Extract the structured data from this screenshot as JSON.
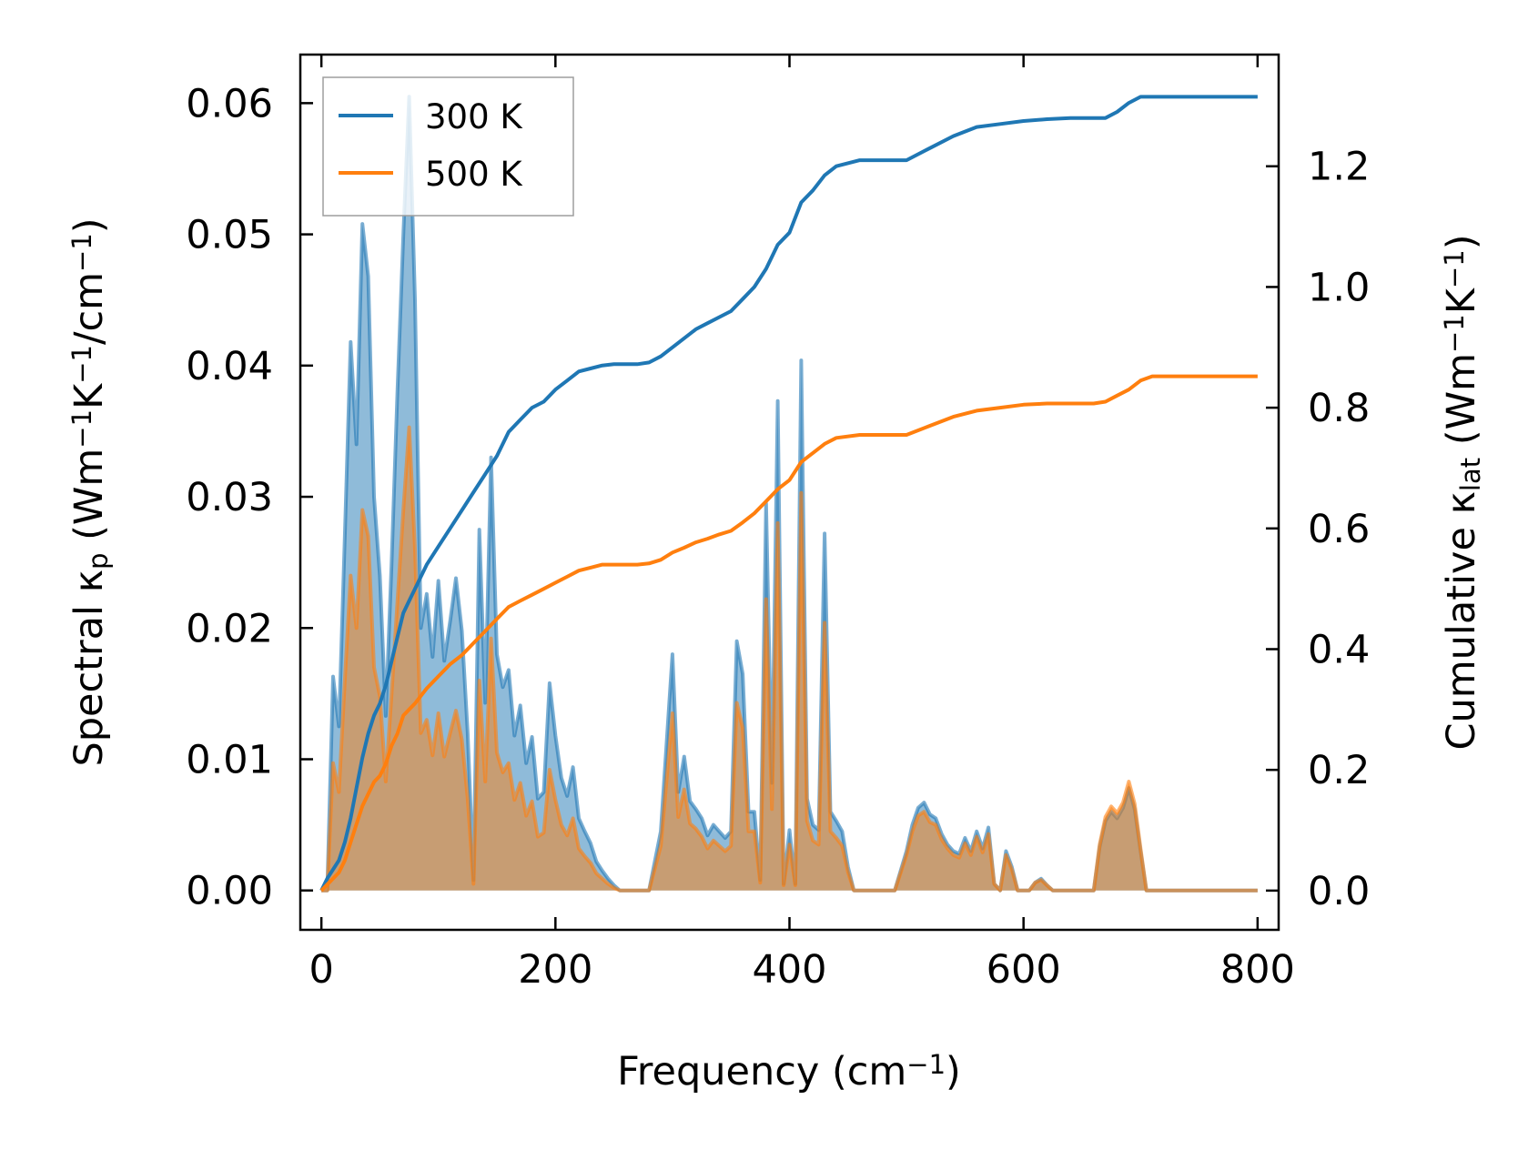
{
  "chart_data": {
    "type": "line",
    "title": "",
    "x_axis": {
      "label": "Frequency (cm",
      "label_sup": "−1",
      "label_end": ")",
      "lim": [
        -18,
        818
      ],
      "ticks": [
        0,
        200,
        400,
        600,
        800
      ],
      "tick_labels": [
        "0",
        "200",
        "400",
        "600",
        "800"
      ]
    },
    "y_axis_left": {
      "label_parts": [
        "Spectral κ",
        "p",
        " (Wm",
        "−1",
        "K",
        "−1",
        "/cm",
        "−1",
        ")"
      ],
      "label_styles": [
        "n",
        "sub",
        "n",
        "sup",
        "n",
        "sup",
        "n",
        "sup",
        "n"
      ],
      "lim": [
        -0.003,
        0.0637
      ],
      "ticks": [
        0,
        0.01,
        0.02,
        0.03,
        0.04,
        0.05,
        0.06
      ],
      "tick_labels": [
        "0.00",
        "0.01",
        "0.02",
        "0.03",
        "0.04",
        "0.05",
        "0.06"
      ]
    },
    "y_axis_right": {
      "label_parts": [
        "Cumulative κ",
        "lat",
        " (Wm",
        "−1",
        "K",
        "−1",
        ")"
      ],
      "label_styles": [
        "n",
        "sub",
        "n",
        "sup",
        "n",
        "sup",
        "n"
      ],
      "lim": [
        -0.065,
        1.385
      ],
      "ticks": [
        0,
        0.2,
        0.4,
        0.6,
        0.8,
        1.0,
        1.2
      ],
      "tick_labels": [
        "0.0",
        "0.2",
        "0.4",
        "0.6",
        "0.8",
        "1.0",
        "1.2"
      ]
    },
    "legend": {
      "placement": "upper-left",
      "entries": [
        "300 K",
        "500 K"
      ]
    },
    "series": [
      {
        "name": "300 K",
        "color": "#1f77b4",
        "spectral": {
          "x": [
            0,
            5,
            10,
            15,
            20,
            25,
            30,
            35,
            40,
            45,
            50,
            55,
            60,
            65,
            70,
            75,
            80,
            85,
            90,
            95,
            100,
            105,
            110,
            115,
            120,
            125,
            130,
            135,
            140,
            145,
            150,
            155,
            160,
            165,
            170,
            175,
            180,
            185,
            190,
            195,
            200,
            205,
            210,
            215,
            220,
            225,
            230,
            235,
            240,
            245,
            250,
            255,
            260,
            270,
            280,
            290,
            300,
            305,
            310,
            315,
            320,
            325,
            330,
            335,
            340,
            345,
            350,
            355,
            360,
            365,
            370,
            375,
            380,
            385,
            390,
            395,
            400,
            405,
            410,
            415,
            420,
            425,
            430,
            435,
            440,
            445,
            450,
            455,
            460,
            470,
            480,
            490,
            500,
            505,
            510,
            515,
            520,
            525,
            530,
            535,
            540,
            545,
            550,
            555,
            560,
            565,
            570,
            575,
            580,
            585,
            590,
            595,
            600,
            605,
            610,
            615,
            620,
            625,
            630,
            640,
            650,
            660,
            665,
            670,
            675,
            680,
            685,
            690,
            695,
            700,
            705,
            710,
            720,
            740,
            760,
            780,
            800
          ],
          "values": [
            0.0,
            0.0,
            0.0163,
            0.0125,
            0.027,
            0.0418,
            0.034,
            0.0508,
            0.0468,
            0.03,
            0.024,
            0.0133,
            0.025,
            0.038,
            0.05,
            0.0605,
            0.045,
            0.02,
            0.0226,
            0.0178,
            0.0236,
            0.0175,
            0.0205,
            0.0238,
            0.0198,
            0.012,
            0.0008,
            0.0275,
            0.0143,
            0.033,
            0.018,
            0.0155,
            0.0168,
            0.0118,
            0.0141,
            0.0097,
            0.0117,
            0.007,
            0.0075,
            0.0158,
            0.0118,
            0.0086,
            0.0072,
            0.0094,
            0.0055,
            0.0045,
            0.0036,
            0.0022,
            0.0015,
            0.0009,
            0.0004,
            0.0,
            0.0,
            0.0,
            0.0,
            0.0045,
            0.018,
            0.0075,
            0.0102,
            0.0068,
            0.0062,
            0.0055,
            0.0042,
            0.005,
            0.0045,
            0.004,
            0.0045,
            0.019,
            0.0165,
            0.006,
            0.006,
            0.0008,
            0.0295,
            0.0082,
            0.0373,
            0.0005,
            0.0046,
            0.0005,
            0.0404,
            0.007,
            0.005,
            0.0046,
            0.0272,
            0.006,
            0.0053,
            0.0045,
            0.0018,
            0.0,
            0.0,
            0.0,
            0.0,
            0.0,
            0.003,
            0.005,
            0.0063,
            0.0067,
            0.0058,
            0.0055,
            0.0043,
            0.0035,
            0.003,
            0.0028,
            0.004,
            0.003,
            0.0045,
            0.0032,
            0.0048,
            0.0005,
            0.0,
            0.003,
            0.0018,
            0.0,
            0.0,
            0.0,
            0.0006,
            0.0009,
            0.0004,
            0.0,
            0.0,
            0.0,
            0.0,
            0.0,
            0.0033,
            0.0053,
            0.006,
            0.0055,
            0.0063,
            0.0078,
            0.0062,
            0.003,
            0.0,
            0.0,
            0.0,
            0.0,
            0.0,
            0.0,
            0.0
          ]
        },
        "cumulative": {
          "x": [
            0,
            5,
            15,
            20,
            25,
            30,
            35,
            40,
            45,
            50,
            55,
            60,
            65,
            70,
            75,
            80,
            90,
            100,
            110,
            120,
            130,
            140,
            150,
            160,
            170,
            180,
            190,
            200,
            210,
            220,
            230,
            240,
            250,
            260,
            270,
            280,
            290,
            300,
            310,
            320,
            330,
            340,
            350,
            360,
            370,
            380,
            390,
            400,
            410,
            420,
            430,
            440,
            460,
            480,
            500,
            520,
            540,
            560,
            580,
            600,
            620,
            640,
            660,
            670,
            680,
            690,
            700,
            710,
            720,
            760,
            800
          ],
          "values": [
            0.0,
            0.02,
            0.05,
            0.08,
            0.12,
            0.17,
            0.22,
            0.26,
            0.29,
            0.31,
            0.34,
            0.38,
            0.42,
            0.46,
            0.48,
            0.5,
            0.54,
            0.57,
            0.6,
            0.63,
            0.66,
            0.69,
            0.72,
            0.76,
            0.78,
            0.8,
            0.81,
            0.83,
            0.845,
            0.86,
            0.865,
            0.87,
            0.872,
            0.872,
            0.872,
            0.875,
            0.885,
            0.9,
            0.915,
            0.93,
            0.94,
            0.95,
            0.96,
            0.98,
            1.0,
            1.03,
            1.07,
            1.09,
            1.14,
            1.16,
            1.185,
            1.2,
            1.21,
            1.21,
            1.21,
            1.23,
            1.25,
            1.265,
            1.27,
            1.275,
            1.278,
            1.28,
            1.28,
            1.28,
            1.29,
            1.305,
            1.315,
            1.315,
            1.315,
            1.315,
            1.315
          ]
        }
      },
      {
        "name": "500 K",
        "color": "#ff7f0e",
        "spectral": {
          "x": [
            0,
            5,
            10,
            15,
            20,
            25,
            30,
            35,
            40,
            45,
            50,
            55,
            60,
            65,
            70,
            75,
            80,
            85,
            90,
            95,
            100,
            105,
            110,
            115,
            120,
            125,
            130,
            135,
            140,
            145,
            150,
            155,
            160,
            165,
            170,
            175,
            180,
            185,
            190,
            195,
            200,
            205,
            210,
            215,
            220,
            225,
            230,
            235,
            240,
            245,
            250,
            255,
            260,
            270,
            280,
            290,
            300,
            305,
            310,
            315,
            320,
            325,
            330,
            335,
            340,
            345,
            350,
            355,
            360,
            365,
            370,
            375,
            380,
            385,
            390,
            395,
            400,
            405,
            410,
            415,
            420,
            425,
            430,
            435,
            440,
            445,
            450,
            455,
            460,
            470,
            480,
            490,
            500,
            505,
            510,
            515,
            520,
            525,
            530,
            535,
            540,
            545,
            550,
            555,
            560,
            565,
            570,
            575,
            580,
            585,
            590,
            595,
            600,
            605,
            610,
            615,
            620,
            625,
            630,
            640,
            650,
            660,
            665,
            670,
            675,
            680,
            685,
            690,
            695,
            700,
            705,
            710,
            720,
            740,
            760,
            780,
            800
          ],
          "values": [
            0.0,
            0.0,
            0.0097,
            0.0075,
            0.016,
            0.024,
            0.02,
            0.029,
            0.027,
            0.017,
            0.0148,
            0.0083,
            0.015,
            0.022,
            0.029,
            0.0353,
            0.026,
            0.012,
            0.013,
            0.0103,
            0.0135,
            0.0102,
            0.012,
            0.0137,
            0.0115,
            0.007,
            0.0005,
            0.016,
            0.0083,
            0.0192,
            0.0105,
            0.009,
            0.0097,
            0.0069,
            0.0082,
            0.0057,
            0.0068,
            0.0041,
            0.0044,
            0.0092,
            0.0069,
            0.005,
            0.0042,
            0.0055,
            0.0032,
            0.0026,
            0.0021,
            0.0013,
            0.0009,
            0.0005,
            0.0002,
            0.0,
            0.0,
            0.0,
            0.0,
            0.0034,
            0.0135,
            0.0056,
            0.0077,
            0.0051,
            0.0047,
            0.0041,
            0.0032,
            0.0038,
            0.0034,
            0.003,
            0.0034,
            0.0143,
            0.0124,
            0.0045,
            0.0045,
            0.0006,
            0.0222,
            0.0062,
            0.028,
            0.0004,
            0.0035,
            0.0004,
            0.0303,
            0.0053,
            0.0038,
            0.0035,
            0.0204,
            0.0045,
            0.004,
            0.0034,
            0.0014,
            0.0,
            0.0,
            0.0,
            0.0,
            0.0,
            0.0027,
            0.0045,
            0.0057,
            0.006,
            0.0052,
            0.005,
            0.0039,
            0.0032,
            0.0027,
            0.0025,
            0.0036,
            0.0027,
            0.0041,
            0.0029,
            0.0043,
            0.0005,
            0.0,
            0.0027,
            0.0016,
            0.0,
            0.0,
            0.0,
            0.0006,
            0.0008,
            0.0004,
            0.0,
            0.0,
            0.0,
            0.0,
            0.0,
            0.0035,
            0.0056,
            0.0064,
            0.0059,
            0.0067,
            0.0083,
            0.0066,
            0.0032,
            0.0,
            0.0,
            0.0,
            0.0,
            0.0,
            0.0,
            0.0
          ]
        },
        "cumulative": {
          "x": [
            0,
            5,
            15,
            20,
            25,
            30,
            35,
            40,
            45,
            50,
            55,
            60,
            65,
            70,
            75,
            80,
            90,
            100,
            110,
            120,
            130,
            140,
            150,
            160,
            170,
            180,
            190,
            200,
            210,
            220,
            230,
            240,
            250,
            260,
            270,
            280,
            290,
            300,
            310,
            320,
            330,
            340,
            350,
            360,
            370,
            380,
            390,
            400,
            410,
            420,
            430,
            440,
            460,
            480,
            500,
            520,
            540,
            560,
            580,
            600,
            620,
            640,
            660,
            670,
            680,
            690,
            700,
            710,
            720,
            760,
            800
          ],
          "values": [
            0.0,
            0.01,
            0.03,
            0.05,
            0.08,
            0.11,
            0.14,
            0.16,
            0.18,
            0.19,
            0.21,
            0.24,
            0.26,
            0.29,
            0.3,
            0.31,
            0.335,
            0.355,
            0.375,
            0.39,
            0.41,
            0.43,
            0.45,
            0.47,
            0.48,
            0.49,
            0.5,
            0.51,
            0.52,
            0.53,
            0.535,
            0.54,
            0.54,
            0.54,
            0.54,
            0.542,
            0.548,
            0.56,
            0.568,
            0.577,
            0.583,
            0.59,
            0.596,
            0.61,
            0.625,
            0.645,
            0.665,
            0.68,
            0.71,
            0.725,
            0.74,
            0.75,
            0.755,
            0.755,
            0.755,
            0.77,
            0.785,
            0.795,
            0.8,
            0.805,
            0.807,
            0.807,
            0.807,
            0.81,
            0.82,
            0.83,
            0.845,
            0.852,
            0.852,
            0.852,
            0.852
          ]
        }
      }
    ]
  }
}
